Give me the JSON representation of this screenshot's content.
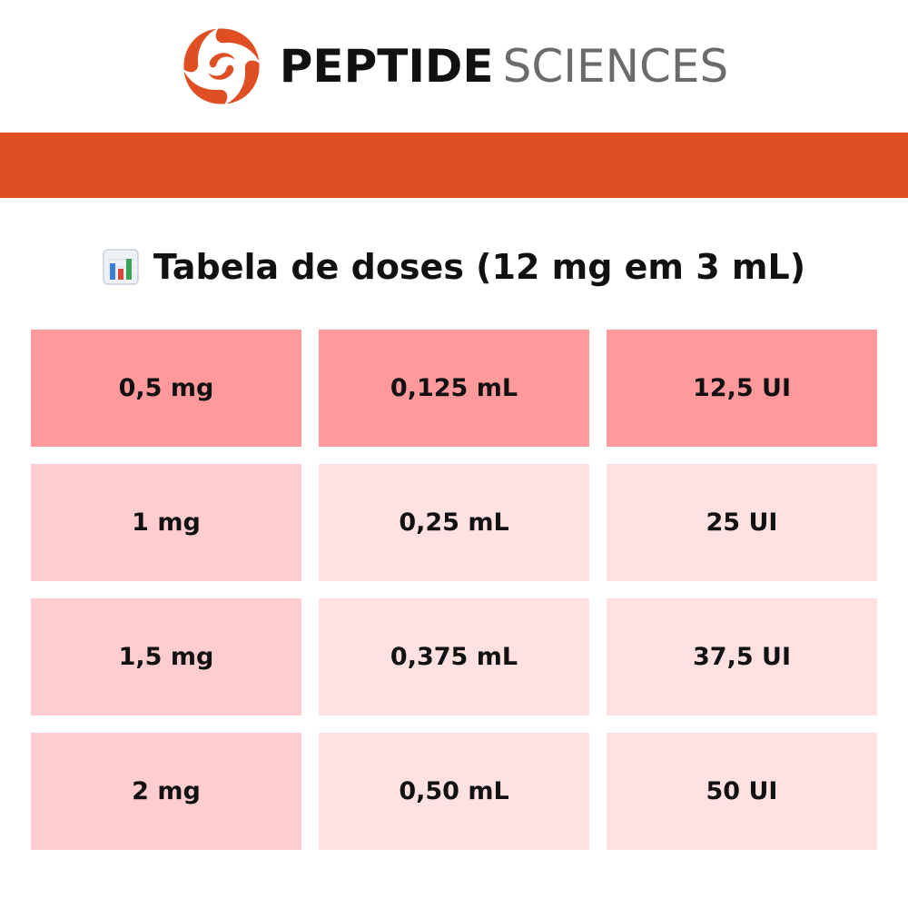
{
  "brand": {
    "name_bold": "PEPTIDE",
    "name_light": "SCIENCES",
    "logo_icon": "swirl-logo-icon",
    "accent_color": "#e04e24"
  },
  "title": {
    "icon": "bar-chart-icon",
    "text": "Tabela de doses (12 mg em 3 mL)"
  },
  "table": {
    "rows": [
      {
        "cells": [
          "0,5 mg",
          "0,125 mL",
          "12,5 UI"
        ],
        "colors": [
          "#ff999c",
          "#ff999c",
          "#ff999c"
        ]
      },
      {
        "cells": [
          "1 mg",
          "0,25 mL",
          "25 UI"
        ],
        "colors": [
          "#ffcdcf",
          "#ffe1e2",
          "#ffe1e2"
        ]
      },
      {
        "cells": [
          "1,5 mg",
          "0,375 mL",
          "37,5 UI"
        ],
        "colors": [
          "#ffcdcf",
          "#ffe1e2",
          "#ffe1e2"
        ]
      },
      {
        "cells": [
          "2 mg",
          "0,50 mL",
          "50 UI"
        ],
        "colors": [
          "#ffcdcf",
          "#ffe1e2",
          "#ffe1e2"
        ]
      }
    ]
  }
}
